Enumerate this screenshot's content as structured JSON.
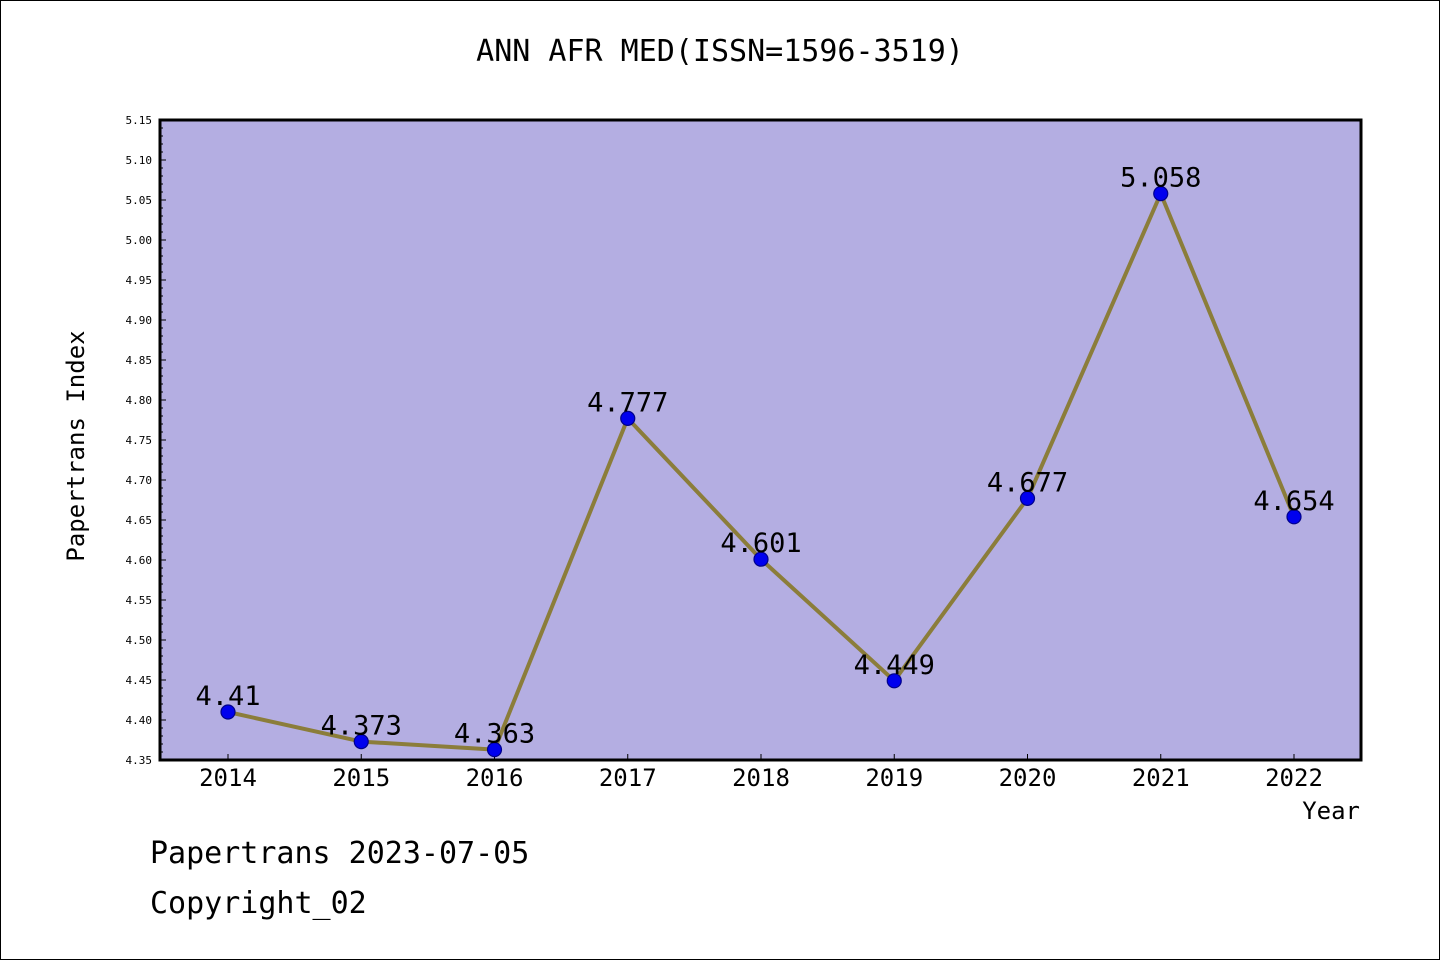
{
  "chart_data": {
    "type": "line",
    "title": "ANN AFR MED(ISSN=1596-3519)",
    "xlabel": "Year",
    "ylabel": "Papertrans Index",
    "categories": [
      "2014",
      "2015",
      "2016",
      "2017",
      "2018",
      "2019",
      "2020",
      "2021",
      "2022"
    ],
    "series": [
      {
        "values": [
          4.41,
          4.373,
          4.363,
          4.777,
          4.601,
          4.449,
          4.677,
          5.058,
          4.654
        ]
      }
    ],
    "data_labels": [
      "4.41",
      "4.373",
      "4.363",
      "4.777",
      "4.601",
      "4.449",
      "4.677",
      "5.058",
      "4.654"
    ],
    "ylim": [
      4.35,
      5.15
    ],
    "yticks": [
      "4.35",
      "4.40",
      "4.45",
      "4.50",
      "4.55",
      "4.60",
      "4.65",
      "4.70",
      "4.75",
      "4.80",
      "4.85",
      "4.90",
      "4.95",
      "5.00",
      "5.05",
      "5.10",
      "5.15"
    ],
    "grid": false,
    "legend": "none",
    "colors": {
      "plot_background": "#b4aee2",
      "line": "#8b7d3a",
      "marker": "#0000ee",
      "marker_edge": "#00008b"
    }
  },
  "footer": {
    "line1": "Papertrans 2023-07-05",
    "line2": "Copyright_02"
  }
}
